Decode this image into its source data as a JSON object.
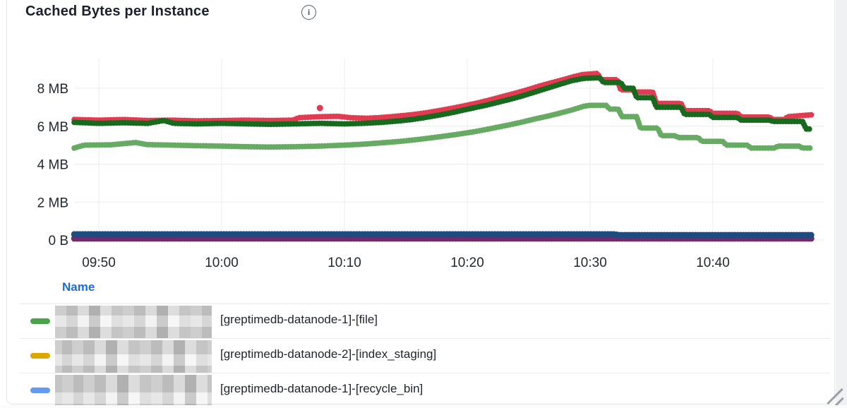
{
  "panel": {
    "title": "Cached Bytes per Instance",
    "info_glyph": "i"
  },
  "legend": {
    "header": "Name",
    "rows": [
      {
        "color": "#4ba34b",
        "label": "[greptimedb-datanode-1]-[file]"
      },
      {
        "color": "#d8a800",
        "label": "[greptimedb-datanode-2]-[index_staging]"
      },
      {
        "color": "#629af0",
        "label": "[greptimedb-datanode-1]-[recycle_bin]"
      }
    ]
  },
  "chart_data": {
    "type": "line",
    "title": "Cached Bytes per Instance",
    "xlabel": "",
    "ylabel": "",
    "unit": "bytes",
    "x_axis_type": "time",
    "x_range_minutes_after_9h": [
      48,
      108.05
    ],
    "ylim_mb": [
      0,
      9.56
    ],
    "grid": true,
    "legend_position": "bottom-table",
    "x_ticks": [
      {
        "label": "09:50",
        "value": 50
      },
      {
        "label": "10:00",
        "value": 60
      },
      {
        "label": "10:10",
        "value": 70
      },
      {
        "label": "10:20",
        "value": 80
      },
      {
        "label": "10:30",
        "value": 90
      },
      {
        "label": "10:40",
        "value": 100
      }
    ],
    "y_ticks": [
      {
        "label": "0 B",
        "value": 0
      },
      {
        "label": "2 MB",
        "value": 2
      },
      {
        "label": "4 MB",
        "value": 4
      },
      {
        "label": "6 MB",
        "value": 6
      },
      {
        "label": "8 MB",
        "value": 8
      }
    ],
    "series": [
      {
        "name": "purple-line",
        "color": "#722a6e",
        "width": 9,
        "points": [
          [
            48,
            0.08
          ],
          [
            108.05,
            0.08
          ]
        ]
      },
      {
        "name": "navy-blue-line",
        "color": "#1d4d80",
        "width": 9,
        "points": [
          [
            48,
            0.3
          ],
          [
            92,
            0.3
          ],
          [
            92.3,
            0.26
          ],
          [
            108.05,
            0.26
          ]
        ]
      },
      {
        "name": "light-green-line",
        "color": "#67aa64",
        "width": 8,
        "points": [
          [
            48,
            4.85
          ],
          [
            48.8,
            5.0
          ],
          [
            51,
            5.02
          ],
          [
            53,
            5.14
          ],
          [
            53.9,
            5.03
          ],
          [
            56,
            5.0
          ],
          [
            58,
            4.97
          ],
          [
            60,
            4.95
          ],
          [
            62,
            4.92
          ],
          [
            64,
            4.9
          ],
          [
            66,
            4.92
          ],
          [
            68,
            4.95
          ],
          [
            70,
            5.0
          ],
          [
            71.5,
            5.05
          ],
          [
            73,
            5.12
          ],
          [
            74.5,
            5.2
          ],
          [
            76,
            5.3
          ],
          [
            77.5,
            5.42
          ],
          [
            79,
            5.55
          ],
          [
            80.5,
            5.7
          ],
          [
            81.5,
            5.82
          ],
          [
            82.5,
            5.95
          ],
          [
            83.5,
            6.08
          ],
          [
            84.5,
            6.22
          ],
          [
            85.5,
            6.38
          ],
          [
            86.5,
            6.52
          ],
          [
            87.5,
            6.68
          ],
          [
            88.5,
            6.85
          ],
          [
            89.5,
            7.05
          ],
          [
            90,
            7.1
          ],
          [
            91.3,
            7.1
          ],
          [
            91.6,
            6.9
          ],
          [
            92.3,
            6.9
          ],
          [
            92.6,
            6.5
          ],
          [
            93.8,
            6.5
          ],
          [
            94.1,
            5.9
          ],
          [
            95.5,
            5.9
          ],
          [
            95.8,
            5.5
          ],
          [
            96.9,
            5.5
          ],
          [
            97.2,
            5.4
          ],
          [
            98.8,
            5.4
          ],
          [
            99.1,
            5.2
          ],
          [
            100.8,
            5.2
          ],
          [
            101.1,
            5.0
          ],
          [
            102.8,
            5.0
          ],
          [
            103.1,
            4.85
          ],
          [
            105,
            4.85
          ],
          [
            105.3,
            4.95
          ],
          [
            107,
            4.95
          ],
          [
            107.3,
            4.85
          ],
          [
            108.05,
            4.85
          ]
        ]
      },
      {
        "name": "red-line",
        "color": "#e13b52",
        "width": 8,
        "points": [
          [
            48,
            6.35
          ],
          [
            50,
            6.32
          ],
          [
            52,
            6.35
          ],
          [
            54,
            6.3
          ],
          [
            56,
            6.32
          ],
          [
            58,
            6.28
          ],
          [
            60,
            6.3
          ],
          [
            62,
            6.32
          ],
          [
            64,
            6.3
          ],
          [
            65.8,
            6.32
          ],
          [
            66.3,
            6.45
          ],
          [
            68,
            6.5
          ],
          [
            69.5,
            6.52
          ],
          [
            70.5,
            6.45
          ],
          [
            71.8,
            6.42
          ],
          [
            72.8,
            6.45
          ],
          [
            73.8,
            6.5
          ],
          [
            74.8,
            6.56
          ],
          [
            75.8,
            6.63
          ],
          [
            76.8,
            6.72
          ],
          [
            77.8,
            6.83
          ],
          [
            78.8,
            6.95
          ],
          [
            79.8,
            7.08
          ],
          [
            80.8,
            7.22
          ],
          [
            81.8,
            7.38
          ],
          [
            82.8,
            7.55
          ],
          [
            83.8,
            7.72
          ],
          [
            84.8,
            7.9
          ],
          [
            85.8,
            8.1
          ],
          [
            86.8,
            8.28
          ],
          [
            87.8,
            8.45
          ],
          [
            88.6,
            8.6
          ],
          [
            89.4,
            8.72
          ],
          [
            90.6,
            8.78
          ],
          [
            90.9,
            8.45
          ],
          [
            92.2,
            8.45
          ],
          [
            92.5,
            7.92
          ],
          [
            93.4,
            7.92
          ],
          [
            93.7,
            7.8
          ],
          [
            95.1,
            7.8
          ],
          [
            95.4,
            7.2
          ],
          [
            97.4,
            7.2
          ],
          [
            97.7,
            6.82
          ],
          [
            99.7,
            6.82
          ],
          [
            100,
            6.68
          ],
          [
            102,
            6.68
          ],
          [
            102.3,
            6.48
          ],
          [
            104.6,
            6.48
          ],
          [
            104.9,
            6.35
          ],
          [
            105.8,
            6.35
          ],
          [
            106.1,
            6.5
          ],
          [
            107,
            6.55
          ],
          [
            108.05,
            6.6
          ]
        ]
      },
      {
        "name": "dark-green-line",
        "color": "#17691d",
        "width": 8,
        "points": [
          [
            48,
            6.2
          ],
          [
            50,
            6.15
          ],
          [
            52,
            6.18
          ],
          [
            54,
            6.15
          ],
          [
            55.3,
            6.3
          ],
          [
            56.1,
            6.15
          ],
          [
            58,
            6.12
          ],
          [
            60,
            6.15
          ],
          [
            62,
            6.12
          ],
          [
            64,
            6.1
          ],
          [
            66,
            6.12
          ],
          [
            68,
            6.15
          ],
          [
            70,
            6.12
          ],
          [
            71.5,
            6.15
          ],
          [
            73,
            6.2
          ],
          [
            74.5,
            6.28
          ],
          [
            75.5,
            6.35
          ],
          [
            76.5,
            6.45
          ],
          [
            77.5,
            6.56
          ],
          [
            78.5,
            6.68
          ],
          [
            79.5,
            6.82
          ],
          [
            80.5,
            6.96
          ],
          [
            81.5,
            7.1
          ],
          [
            82.5,
            7.26
          ],
          [
            83.5,
            7.42
          ],
          [
            84.5,
            7.6
          ],
          [
            85.5,
            7.8
          ],
          [
            86.5,
            8.0
          ],
          [
            87.5,
            8.2
          ],
          [
            88.5,
            8.4
          ],
          [
            89.5,
            8.52
          ],
          [
            90.8,
            8.55
          ],
          [
            91.1,
            8.3
          ],
          [
            92.5,
            8.3
          ],
          [
            92.8,
            8.0
          ],
          [
            93.5,
            8.0
          ],
          [
            93.8,
            7.5
          ],
          [
            95.1,
            7.5
          ],
          [
            95.4,
            7.0
          ],
          [
            97.4,
            7.0
          ],
          [
            97.7,
            6.62
          ],
          [
            99.7,
            6.62
          ],
          [
            100,
            6.46
          ],
          [
            102,
            6.46
          ],
          [
            102.3,
            6.32
          ],
          [
            104.6,
            6.32
          ],
          [
            104.9,
            6.25
          ],
          [
            107.3,
            6.25
          ],
          [
            107.6,
            5.85
          ],
          [
            108.05,
            5.85
          ]
        ]
      },
      {
        "name": "red-outlier-point",
        "color": "#e13b52",
        "type": "point",
        "radius": 4.5,
        "points": [
          [
            68,
            6.96
          ]
        ]
      }
    ]
  }
}
